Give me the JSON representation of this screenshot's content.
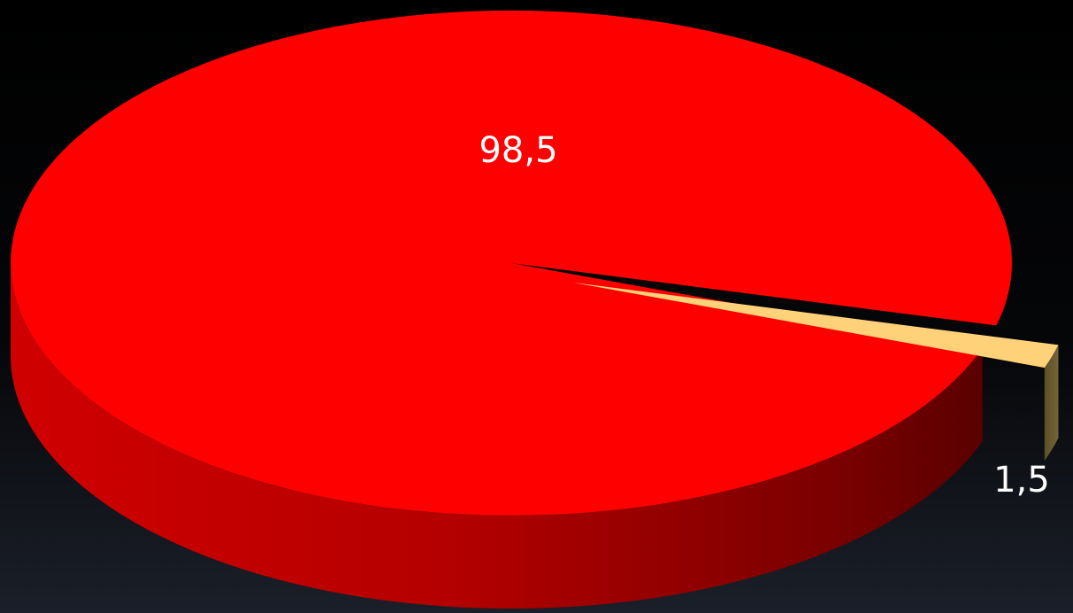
{
  "chart_data": {
    "type": "pie",
    "title": "",
    "slices": [
      {
        "label": "98,5",
        "value": 98.5,
        "color": "#ff0000",
        "side_color": "#c80000"
      },
      {
        "label": "1,5",
        "value": 1.5,
        "color": "#ffd27a",
        "side_color": "#6b5a2e",
        "exploded": true
      }
    ],
    "legend": "none",
    "style": "3d"
  }
}
